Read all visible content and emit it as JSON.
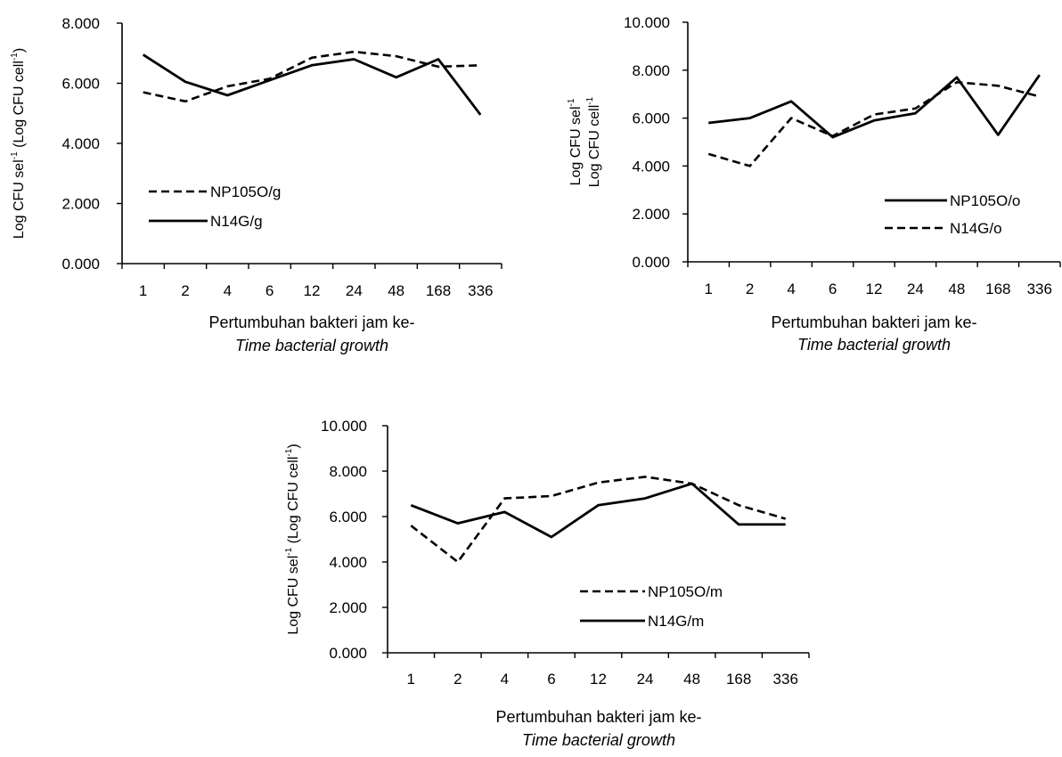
{
  "chart_data": [
    {
      "type": "line",
      "categories": [
        "1",
        "2",
        "4",
        "6",
        "12",
        "24",
        "48",
        "168",
        "336"
      ],
      "ylim": [
        0,
        8
      ],
      "yticks": [
        "0.000",
        "2.000",
        "4.000",
        "6.000",
        "8.000"
      ],
      "ylabel": {
        "base": "Log CFU sel",
        "sup1": "-1",
        "mid": " (Log CFU cell",
        "sup2": "-1",
        "end": ")"
      },
      "xlabel": "Pertumbuhan bakteri jam ke-",
      "xlabel2": "Time bacterial growth",
      "legend_position": "left",
      "series": [
        {
          "name": "NP105O/g",
          "dash": true,
          "values": [
            5.7,
            5.4,
            5.9,
            6.15,
            6.85,
            7.05,
            6.9,
            6.55,
            6.6
          ]
        },
        {
          "name": "N14G/g",
          "dash": false,
          "values": [
            6.95,
            6.05,
            5.6,
            6.1,
            6.6,
            6.8,
            6.2,
            6.8,
            4.95
          ]
        }
      ]
    },
    {
      "type": "line",
      "categories": [
        "1",
        "2",
        "4",
        "6",
        "12",
        "24",
        "48",
        "168",
        "336"
      ],
      "ylim": [
        0,
        10
      ],
      "yticks": [
        "0.000",
        "2.000",
        "4.000",
        "6.000",
        "8.000",
        "10.000"
      ],
      "ylabel": {
        "line1": "Log CFU sel",
        "sup1": "-1",
        "line2": "Log CFU cell",
        "sup2": "-1"
      },
      "xlabel": "Pertumbuhan bakteri jam ke-",
      "xlabel2": "Time bacterial growth",
      "legend_position": "bottom-right",
      "series": [
        {
          "name": "NP105O/o",
          "dash": false,
          "values": [
            5.8,
            6.0,
            6.7,
            5.2,
            5.9,
            6.2,
            7.7,
            5.3,
            7.8
          ]
        },
        {
          "name": "N14G/o",
          "dash": true,
          "values": [
            4.5,
            4.0,
            6.0,
            5.25,
            6.15,
            6.4,
            7.5,
            7.35,
            6.9
          ]
        }
      ]
    },
    {
      "type": "line",
      "categories": [
        "1",
        "2",
        "4",
        "6",
        "12",
        "24",
        "48",
        "168",
        "336"
      ],
      "ylim": [
        0,
        10
      ],
      "yticks": [
        "0.000",
        "2.000",
        "4.000",
        "6.000",
        "8.000",
        "10.000"
      ],
      "ylabel": {
        "base": "Log CFU sel",
        "sup1": "-1",
        "mid": " (Log CFU cell",
        "sup2": "-1",
        "end": ")"
      },
      "xlabel": "Pertumbuhan bakteri jam ke-",
      "xlabel2": "Time bacterial growth",
      "legend_position": "right",
      "series": [
        {
          "name": "NP105O/m",
          "dash": true,
          "values": [
            5.6,
            4.0,
            6.8,
            6.9,
            7.5,
            7.75,
            7.45,
            6.5,
            5.9
          ]
        },
        {
          "name": "N14G/m",
          "dash": false,
          "values": [
            6.5,
            5.7,
            6.2,
            5.1,
            6.5,
            6.8,
            7.45,
            5.65,
            5.65
          ]
        }
      ]
    }
  ]
}
